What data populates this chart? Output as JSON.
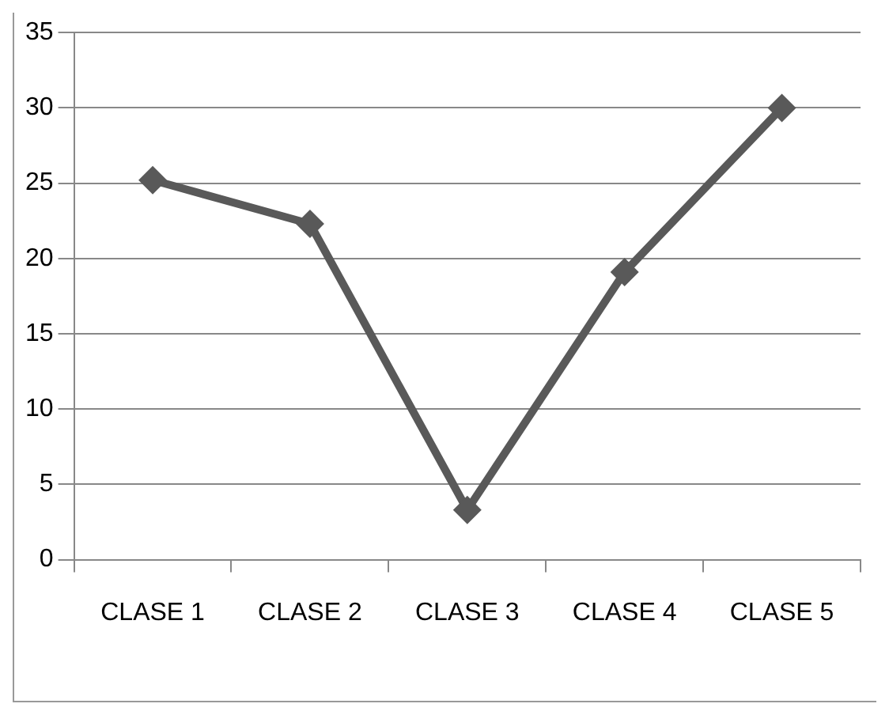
{
  "chart_data": {
    "type": "line",
    "categories": [
      "CLASE 1",
      "CLASE 2",
      "CLASE 3",
      "CLASE 4",
      "CLASE 5"
    ],
    "series": [
      {
        "color": "#595959",
        "values": [
          25.2,
          22.3,
          3.3,
          19.1,
          30
        ]
      }
    ],
    "ylim": [
      0,
      35
    ],
    "yticks": [
      0,
      5,
      10,
      15,
      20,
      25,
      30,
      35
    ],
    "grid": "y",
    "legend": false,
    "marker": "diamond",
    "line_style": "solid"
  }
}
